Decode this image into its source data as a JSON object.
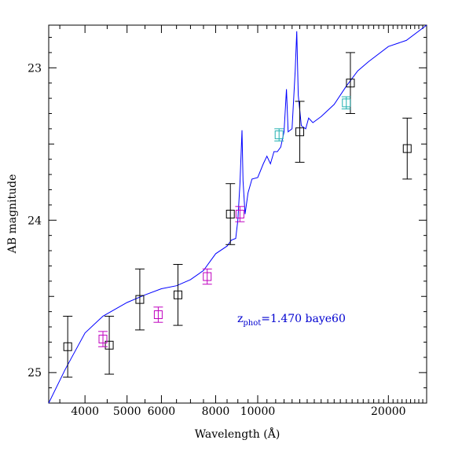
{
  "chart_data": {
    "type": "scatter",
    "xscale": "log",
    "xlim": [
      3300,
      24500
    ],
    "ylim": [
      25.2,
      22.72
    ],
    "y_inverted": true,
    "xlabel": "Wavelength (Å)",
    "ylabel": "AB magnitude",
    "xticks": [
      4000,
      5000,
      6000,
      8000,
      10000,
      20000
    ],
    "xtick_labels": [
      "4000",
      "5000",
      "6000",
      "8000",
      "10000",
      "20000"
    ],
    "yticks": [
      23,
      24,
      25
    ],
    "ytick_labels": [
      "23",
      "24",
      "25"
    ],
    "annotation": {
      "prefix": "z",
      "subscript": "phot",
      "text": "=1.470 baye60"
    },
    "series": [
      {
        "color": "#000000",
        "points": [
          {
            "x": 3650,
            "y": 24.83,
            "lo": 24.63,
            "hi": 25.03
          },
          {
            "x": 4550,
            "y": 24.82,
            "lo": 24.63,
            "hi": 25.01
          },
          {
            "x": 5350,
            "y": 24.52,
            "lo": 24.32,
            "hi": 24.72
          },
          {
            "x": 6550,
            "y": 24.49,
            "lo": 24.29,
            "hi": 24.69
          },
          {
            "x": 8650,
            "y": 23.96,
            "lo": 23.76,
            "hi": 24.16
          },
          {
            "x": 12500,
            "y": 23.42,
            "lo": 23.22,
            "hi": 23.62
          },
          {
            "x": 16350,
            "y": 23.1,
            "lo": 22.9,
            "hi": 23.3
          },
          {
            "x": 22100,
            "y": 23.53,
            "lo": 23.33,
            "hi": 23.73
          }
        ]
      },
      {
        "color": "#c000c0",
        "points": [
          {
            "x": 4400,
            "y": 24.78,
            "lo": 24.73,
            "hi": 24.83
          },
          {
            "x": 5900,
            "y": 24.62,
            "lo": 24.57,
            "hi": 24.67
          },
          {
            "x": 7650,
            "y": 24.37,
            "lo": 24.32,
            "hi": 24.42
          },
          {
            "x": 9100,
            "y": 23.96,
            "lo": 23.91,
            "hi": 24.01
          }
        ]
      },
      {
        "color": "#20b0b0",
        "points": [
          {
            "x": 11200,
            "y": 23.44,
            "lo": 23.4,
            "hi": 23.48
          },
          {
            "x": 16000,
            "y": 23.23,
            "lo": 23.19,
            "hi": 23.27
          }
        ]
      }
    ],
    "sed_curve": {
      "color": "#0000ff",
      "points": [
        [
          3300,
          25.2
        ],
        [
          3600,
          24.98
        ],
        [
          4000,
          24.74
        ],
        [
          4400,
          24.63
        ],
        [
          5000,
          24.54
        ],
        [
          5500,
          24.49
        ],
        [
          6000,
          24.45
        ],
        [
          6500,
          24.43
        ],
        [
          7000,
          24.39
        ],
        [
          7500,
          24.33
        ],
        [
          8000,
          24.22
        ],
        [
          8500,
          24.17
        ],
        [
          8700,
          24.13
        ],
        [
          8900,
          24.12
        ],
        [
          9000,
          24.0
        ],
        [
          9100,
          23.76
        ],
        [
          9200,
          23.41
        ],
        [
          9250,
          23.74
        ],
        [
          9350,
          23.96
        ],
        [
          9500,
          23.82
        ],
        [
          9700,
          23.73
        ],
        [
          10000,
          23.72
        ],
        [
          10300,
          23.63
        ],
        [
          10500,
          23.58
        ],
        [
          10700,
          23.63
        ],
        [
          10900,
          23.55
        ],
        [
          11100,
          23.55
        ],
        [
          11300,
          23.52
        ],
        [
          11500,
          23.42
        ],
        [
          11650,
          23.14
        ],
        [
          11750,
          23.42
        ],
        [
          12000,
          23.4
        ],
        [
          12200,
          23.02
        ],
        [
          12300,
          22.76
        ],
        [
          12400,
          23.18
        ],
        [
          12600,
          23.38
        ],
        [
          12900,
          23.4
        ],
        [
          13100,
          23.33
        ],
        [
          13400,
          23.36
        ],
        [
          14000,
          23.32
        ],
        [
          15000,
          23.24
        ],
        [
          16000,
          23.12
        ],
        [
          17000,
          23.02
        ],
        [
          18000,
          22.96
        ],
        [
          20000,
          22.86
        ],
        [
          22000,
          22.82
        ],
        [
          24500,
          22.72
        ]
      ]
    }
  }
}
